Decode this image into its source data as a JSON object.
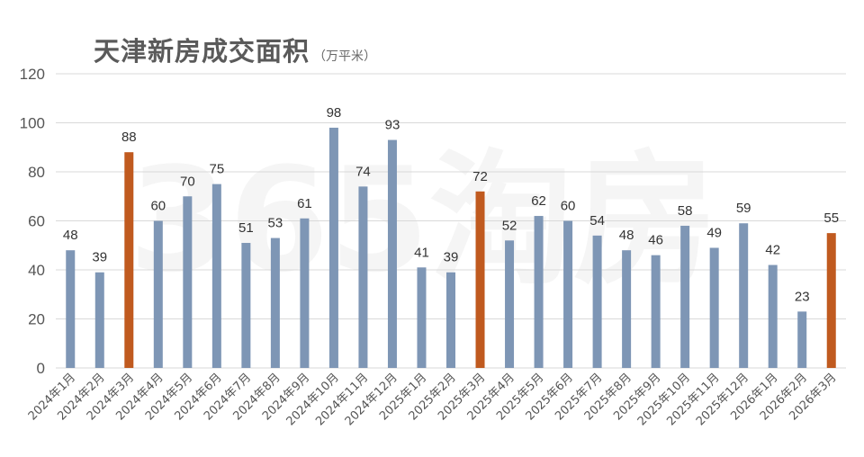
{
  "chart_data": {
    "type": "bar",
    "title": "天津新房成交面积",
    "unit": "（万平米）",
    "watermark": "365淘房",
    "ylim": [
      0,
      120
    ],
    "yticks": [
      0,
      20,
      40,
      60,
      80,
      100,
      120
    ],
    "grid": true,
    "colors": {
      "default": "#7e96b5",
      "highlight": "#c05a1f"
    },
    "categories": [
      "2024年1月",
      "2024年2月",
      "2024年3月",
      "2024年4月",
      "2024年5月",
      "2024年6月",
      "2024年7月",
      "2024年8月",
      "2024年9月",
      "2024年10月",
      "2024年11月",
      "2024年12月",
      "2025年1月",
      "2025年2月",
      "2025年3月",
      "2025年4月",
      "2025年5月",
      "2025年6月",
      "2025年7月",
      "2025年8月",
      "2025年9月",
      "2025年10月",
      "2025年11月",
      "2025年12月",
      "2026年1月",
      "2026年2月",
      "2026年3月"
    ],
    "values": [
      48,
      39,
      88,
      60,
      70,
      75,
      51,
      53,
      61,
      98,
      74,
      93,
      41,
      39,
      72,
      52,
      62,
      60,
      54,
      48,
      46,
      58,
      49,
      59,
      42,
      23,
      55
    ],
    "highlighted": [
      "2024年3月",
      "2025年3月",
      "2026年3月"
    ]
  }
}
